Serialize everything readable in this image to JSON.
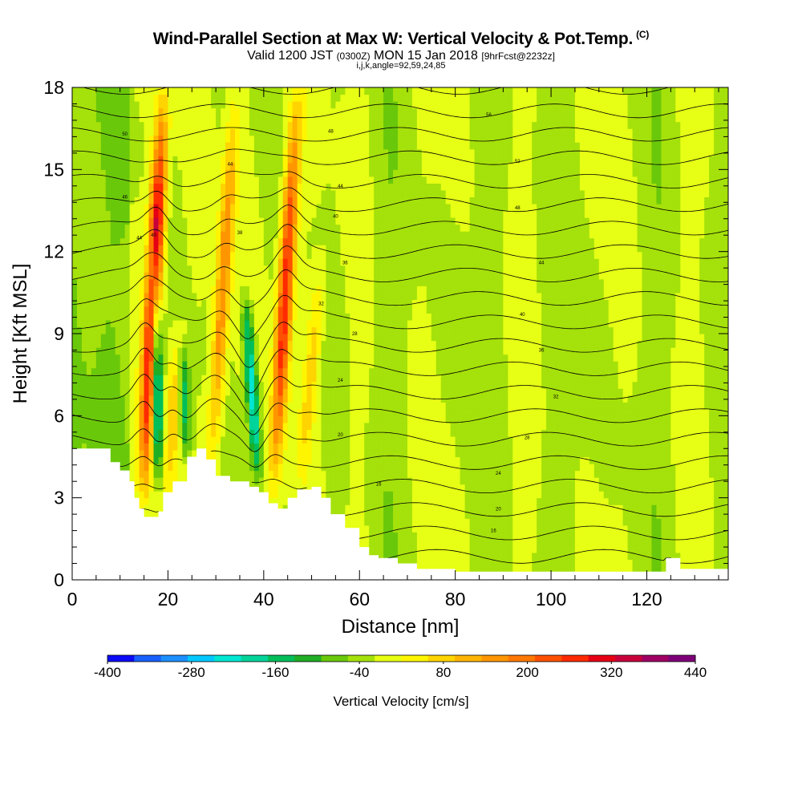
{
  "title": {
    "main": "Wind-Parallel Section at Max W: Vertical Velocity & Pot.Temp.",
    "main_unit": "(C)",
    "valid_prefix": "Valid 1200 JST",
    "valid_utc": "(0300Z)",
    "valid_date": "MON 15 Jan 2018",
    "valid_fcst": "[9hrFcst@2232z]",
    "params": "i,j,k,angle=92,59,24,85"
  },
  "chart_data": {
    "type": "heatmap",
    "xlabel": "Distance [nm]",
    "ylabel": "Height [Kft MSL]",
    "xlim": [
      0,
      137
    ],
    "ylim": [
      0,
      18
    ],
    "x_ticks": [
      0,
      20,
      40,
      60,
      80,
      100,
      120
    ],
    "y_ticks": [
      0,
      3,
      6,
      9,
      12,
      15,
      18
    ],
    "colorbar": {
      "title": "Vertical Velocity [cm/s]",
      "labels": [
        "-400",
        "-280",
        "-160",
        "-40",
        "80",
        "200",
        "320",
        "440"
      ],
      "min": -400,
      "max": 440,
      "step": 40,
      "colors": [
        "#0b0bf5",
        "#1960ff",
        "#1c90ff",
        "#00c8ff",
        "#00e6d2",
        "#00d49b",
        "#00be5a",
        "#1fae25",
        "#6ac80a",
        "#a5e10a",
        "#e6ff14",
        "#fff500",
        "#ffd400",
        "#ffb400",
        "#ff9600",
        "#ff7800",
        "#ff5000",
        "#ff2a00",
        "#e60014",
        "#c8003c",
        "#a00064",
        "#7d0078"
      ]
    },
    "updraft_bands": [
      {
        "x_base": 15,
        "x_top": 19,
        "z_bottom": 3,
        "z_top": 18,
        "w_max": 440
      },
      {
        "x_base": 20,
        "x_top": 22,
        "z_bottom": 2.5,
        "z_top": 9.5,
        "w_max": 120
      },
      {
        "x_base": 29,
        "x_top": 34,
        "z_bottom": 3.5,
        "z_top": 18,
        "w_max": 200
      },
      {
        "x_base": 42,
        "x_top": 47,
        "z_bottom": 3,
        "z_top": 18,
        "w_max": 320
      },
      {
        "x_base": 48,
        "x_top": 52,
        "z_bottom": 3.5,
        "z_top": 12,
        "w_max": 100
      }
    ],
    "downdraft_bands": [
      {
        "x_base": 18,
        "x_top": 17,
        "z_bottom": 3,
        "z_top": 13,
        "w_min": -320
      },
      {
        "x_base": 39,
        "x_top": 36,
        "z_bottom": 3,
        "z_top": 11,
        "w_min": -240
      },
      {
        "x_base": 24,
        "x_top": 23,
        "z_bottom": 4,
        "z_top": 9,
        "w_min": -160
      }
    ],
    "terrain_profile_kft": [
      [
        0,
        4.8
      ],
      [
        7,
        4.8
      ],
      [
        8,
        4.3
      ],
      [
        10,
        4.0
      ],
      [
        12,
        3.6
      ],
      [
        13,
        3.0
      ],
      [
        14,
        2.6
      ],
      [
        15,
        2.3
      ],
      [
        17,
        2.3
      ],
      [
        18,
        2.5
      ],
      [
        19,
        3.2
      ],
      [
        21,
        3.6
      ],
      [
        24,
        4.5
      ],
      [
        26,
        4.8
      ],
      [
        28,
        4.4
      ],
      [
        30,
        3.8
      ],
      [
        33,
        3.6
      ],
      [
        35,
        3.6
      ],
      [
        37,
        3.4
      ],
      [
        39,
        3.2
      ],
      [
        41,
        2.8
      ],
      [
        43,
        2.6
      ],
      [
        45,
        3.0
      ],
      [
        47,
        3.3
      ],
      [
        50,
        3.4
      ],
      [
        52,
        3.0
      ],
      [
        54,
        2.4
      ],
      [
        57,
        1.9
      ],
      [
        60,
        1.2
      ],
      [
        62,
        0.9
      ],
      [
        64,
        0.8
      ],
      [
        68,
        0.6
      ],
      [
        72,
        0.4
      ],
      [
        80,
        0.3
      ],
      [
        122,
        0.3
      ],
      [
        124,
        0.8
      ],
      [
        125,
        0.8
      ],
      [
        127,
        0.4
      ],
      [
        137,
        0.4
      ]
    ],
    "theta_contours_C": [
      0,
      2,
      4,
      6,
      8,
      10,
      12,
      14,
      16,
      18,
      20,
      22,
      24,
      26,
      28,
      30,
      32,
      34,
      36,
      38,
      40,
      42,
      44,
      46,
      48,
      50,
      52,
      54,
      56,
      58,
      60,
      62,
      64,
      66,
      68,
      70,
      72,
      74
    ],
    "theta_label_samples": [
      {
        "x": 11,
        "z": 16.3,
        "text": "50"
      },
      {
        "x": 11,
        "z": 14.0,
        "text": "46"
      },
      {
        "x": 14,
        "z": 12.5,
        "text": "44"
      },
      {
        "x": 17,
        "z": 12.6,
        "text": "40"
      },
      {
        "x": 33,
        "z": 15.2,
        "text": "44"
      },
      {
        "x": 35,
        "z": 12.7,
        "text": "38"
      },
      {
        "x": 54,
        "z": 16.4,
        "text": "48"
      },
      {
        "x": 56,
        "z": 14.4,
        "text": "44"
      },
      {
        "x": 55,
        "z": 13.3,
        "text": "40"
      },
      {
        "x": 57,
        "z": 11.6,
        "text": "36"
      },
      {
        "x": 52,
        "z": 10.1,
        "text": "32"
      },
      {
        "x": 59,
        "z": 9.0,
        "text": "28"
      },
      {
        "x": 56,
        "z": 7.3,
        "text": "24"
      },
      {
        "x": 56,
        "z": 5.3,
        "text": "20"
      },
      {
        "x": 64,
        "z": 3.5,
        "text": "16"
      },
      {
        "x": 87,
        "z": 17.0,
        "text": "56"
      },
      {
        "x": 93,
        "z": 15.3,
        "text": "52"
      },
      {
        "x": 93,
        "z": 13.6,
        "text": "48"
      },
      {
        "x": 98,
        "z": 11.6,
        "text": "44"
      },
      {
        "x": 94,
        "z": 9.7,
        "text": "40"
      },
      {
        "x": 98,
        "z": 8.4,
        "text": "36"
      },
      {
        "x": 101,
        "z": 6.7,
        "text": "32"
      },
      {
        "x": 95,
        "z": 5.2,
        "text": "28"
      },
      {
        "x": 89,
        "z": 3.9,
        "text": "24"
      },
      {
        "x": 89,
        "z": 2.6,
        "text": "20"
      },
      {
        "x": 88,
        "z": 1.8,
        "text": "16"
      }
    ]
  }
}
